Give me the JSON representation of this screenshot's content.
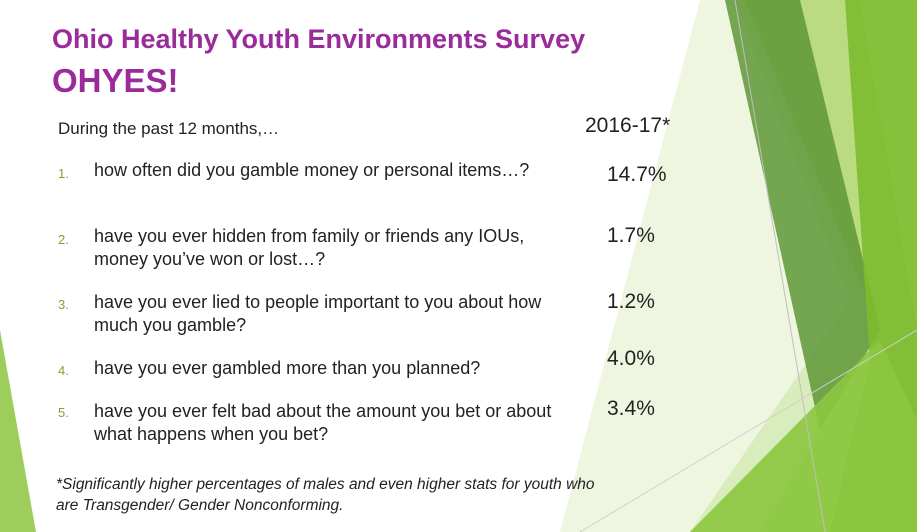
{
  "title": {
    "line1": "Ohio Healthy Youth Environments Survey",
    "line2": "OHYES!"
  },
  "intro": "During the past 12 months,…",
  "column_header": "2016-17*",
  "questions": [
    {
      "number": "1.",
      "text": "how often did you gamble money or personal items…?",
      "value": "14.7%"
    },
    {
      "number": "2.",
      "text": "have you ever hidden from family or friends any IOUs, money you’ve won or lost…?",
      "value": "1.7%"
    },
    {
      "number": "3.",
      "text": "have you ever lied to people important to you about how much you gamble?",
      "value": "1.2%"
    },
    {
      "number": "4.",
      "text": "have you ever gambled more than you planned?",
      "value": "4.0%"
    },
    {
      "number": "5.",
      "text": "have you ever felt bad about the amount you bet or about what happens when you bet?",
      "value": "3.4%"
    }
  ],
  "footnote": "*Significantly higher percentages of males and even higher stats for youth who are Transgender/ Gender Nonconforming.",
  "colors": {
    "title": "#9b2a9b",
    "accent_green": "#7fb83a",
    "number_green": "#7fa334"
  }
}
